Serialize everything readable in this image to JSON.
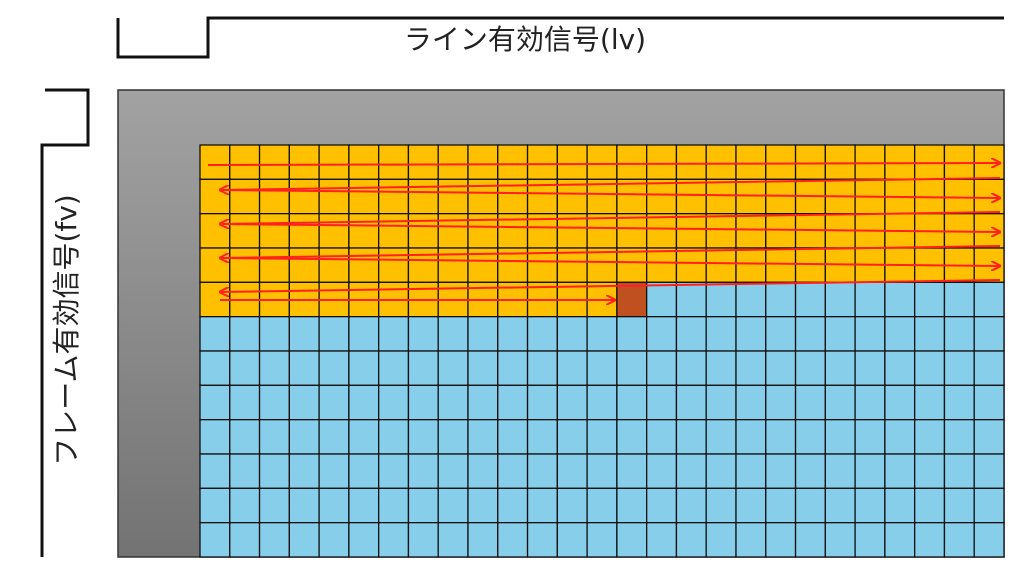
{
  "signals": {
    "line_valid": "ライン有効信号(lv)",
    "frame_valid": "フレーム有効信号(fv)"
  }
}
